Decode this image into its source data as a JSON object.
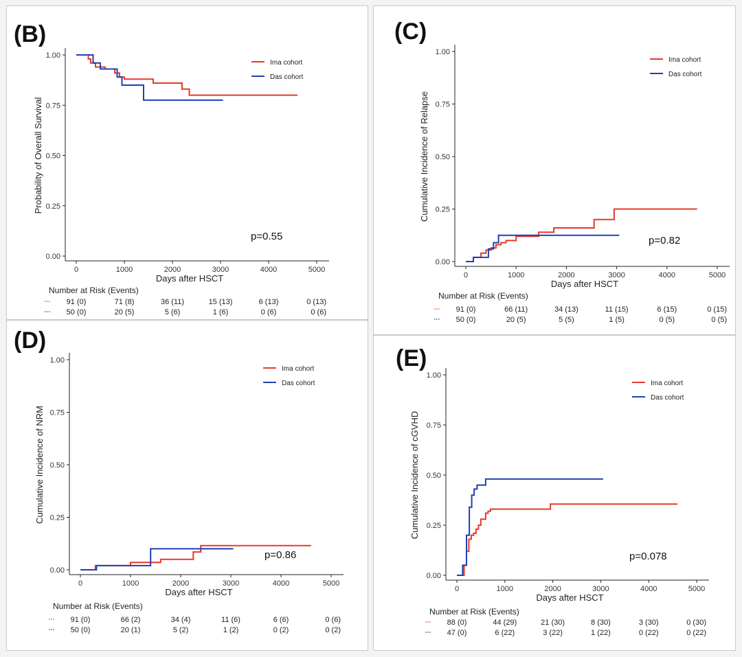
{
  "colors": {
    "ima": "#e5392a",
    "das": "#1f3fb4",
    "axis": "#222222"
  },
  "chart_data": [
    {
      "id": "B",
      "type": "line",
      "panel_label": "(B)",
      "xlabel": "Days after HSCT",
      "ylabel": "Probability of Overall Survival",
      "xlim": [
        0,
        5000
      ],
      "ylim": [
        0,
        1
      ],
      "xticks": [
        0,
        1000,
        2000,
        3000,
        4000,
        5000
      ],
      "yticks": [
        "0.00",
        "0.25",
        "0.50",
        "0.75",
        "1.00"
      ],
      "legend": "top-right",
      "p_value": "p=0.55",
      "series": [
        {
          "name": "Ima cohort",
          "color": "#e5392a",
          "x": [
            0,
            250,
            250,
            300,
            300,
            400,
            400,
            600,
            600,
            800,
            800,
            900,
            900,
            1000,
            1000,
            1600,
            1600,
            2200,
            2200,
            2350,
            2350,
            4600
          ],
          "y": [
            1.0,
            1.0,
            0.98,
            0.98,
            0.96,
            0.96,
            0.94,
            0.94,
            0.93,
            0.93,
            0.91,
            0.91,
            0.89,
            0.89,
            0.88,
            0.88,
            0.86,
            0.86,
            0.83,
            0.83,
            0.8,
            0.8
          ]
        },
        {
          "name": "Das cohort",
          "color": "#1f3fb4",
          "x": [
            0,
            350,
            350,
            500,
            500,
            850,
            850,
            950,
            950,
            1400,
            1400,
            3050
          ],
          "y": [
            1.0,
            1.0,
            0.96,
            0.96,
            0.93,
            0.93,
            0.89,
            0.89,
            0.85,
            0.85,
            0.775,
            0.775
          ]
        }
      ],
      "risk": {
        "title": "Number at Risk (Events)",
        "time_points": [
          0,
          1000,
          2000,
          3000,
          4000,
          5000
        ],
        "rows": [
          {
            "series": "Ima cohort",
            "values": [
              "91 (0)",
              "71 (8)",
              "36 (11)",
              "15 (13)",
              "6 (13)",
              "0 (13)"
            ]
          },
          {
            "series": "Das cohort",
            "values": [
              "50 (0)",
              "20 (5)",
              "5 (6)",
              "1 (6)",
              "0 (6)",
              "0 (6)"
            ]
          }
        ]
      }
    },
    {
      "id": "C",
      "type": "line",
      "panel_label": "(C)",
      "xlabel": "Days after HSCT",
      "ylabel": "Cumulative Incidence of Relapse",
      "xlim": [
        0,
        5000
      ],
      "ylim": [
        0,
        1
      ],
      "xticks": [
        0,
        1000,
        2000,
        3000,
        4000,
        5000
      ],
      "yticks": [
        "0.00",
        "0.25",
        "0.50",
        "0.75",
        "1.00"
      ],
      "legend": "top-right",
      "p_value": "p=0.82",
      "series": [
        {
          "name": "Ima cohort",
          "color": "#e5392a",
          "x": [
            0,
            150,
            150,
            300,
            300,
            400,
            400,
            500,
            500,
            600,
            600,
            700,
            700,
            800,
            800,
            1000,
            1000,
            1450,
            1450,
            1750,
            1750,
            2550,
            2550,
            2950,
            2950,
            4600
          ],
          "y": [
            0,
            0,
            0.02,
            0.02,
            0.04,
            0.04,
            0.055,
            0.055,
            0.065,
            0.065,
            0.08,
            0.08,
            0.09,
            0.09,
            0.1,
            0.1,
            0.12,
            0.12,
            0.14,
            0.14,
            0.16,
            0.16,
            0.2,
            0.2,
            0.25,
            0.25
          ]
        },
        {
          "name": "Das cohort",
          "color": "#1f3fb4",
          "x": [
            0,
            150,
            150,
            450,
            450,
            550,
            550,
            650,
            650,
            3050
          ],
          "y": [
            0,
            0,
            0.02,
            0.02,
            0.06,
            0.06,
            0.09,
            0.09,
            0.125,
            0.125
          ]
        }
      ],
      "risk": {
        "title": "Number at Risk (Events)",
        "time_points": [
          0,
          1000,
          2000,
          3000,
          4000,
          5000
        ],
        "rows": [
          {
            "series": "Ima cohort",
            "values": [
              "91 (0)",
              "66 (11)",
              "34 (13)",
              "11 (15)",
              "6 (15)",
              "0 (15)"
            ]
          },
          {
            "series": "Das cohort",
            "values": [
              "50 (0)",
              "20 (5)",
              "5 (5)",
              "1 (5)",
              "0 (5)",
              "0 (5)"
            ]
          }
        ]
      }
    },
    {
      "id": "D",
      "type": "line",
      "panel_label": "(D)",
      "xlabel": "Days after HSCT",
      "ylabel": "Cumulative Incidence of NRM",
      "xlim": [
        0,
        5000
      ],
      "ylim": [
        0,
        1
      ],
      "xticks": [
        0,
        1000,
        2000,
        3000,
        4000,
        5000
      ],
      "yticks": [
        "0.00",
        "0.25",
        "0.50",
        "0.75",
        "1.00"
      ],
      "legend": "top-right",
      "p_value": "p=0.86",
      "series": [
        {
          "name": "Ima cohort",
          "color": "#e5392a",
          "x": [
            0,
            300,
            300,
            1000,
            1000,
            1600,
            1600,
            2250,
            2250,
            2400,
            2400,
            4600
          ],
          "y": [
            0,
            0,
            0.02,
            0.02,
            0.035,
            0.035,
            0.05,
            0.05,
            0.085,
            0.085,
            0.115,
            0.115
          ]
        },
        {
          "name": "Das cohort",
          "color": "#1f3fb4",
          "x": [
            0,
            320,
            320,
            1400,
            1400,
            3050
          ],
          "y": [
            0,
            0,
            0.02,
            0.02,
            0.1,
            0.1
          ]
        }
      ],
      "risk": {
        "title": "Number at Risk (Events)",
        "time_points": [
          0,
          1000,
          2000,
          3000,
          4000,
          5000
        ],
        "rows": [
          {
            "series": "Ima cohort",
            "values": [
              "91 (0)",
              "66 (2)",
              "34 (4)",
              "11 (6)",
              "6 (6)",
              "0 (6)"
            ]
          },
          {
            "series": "Das cohort",
            "values": [
              "50 (0)",
              "20 (1)",
              "5 (2)",
              "1 (2)",
              "0 (2)",
              "0 (2)"
            ]
          }
        ]
      }
    },
    {
      "id": "E",
      "type": "line",
      "panel_label": "(E)",
      "xlabel": "Days after HSCT",
      "ylabel": "Cumulative Incidence of cGVHD",
      "xlim": [
        0,
        5000
      ],
      "ylim": [
        0,
        1
      ],
      "xticks": [
        0,
        1000,
        2000,
        3000,
        4000,
        5000
      ],
      "yticks": [
        "0.00",
        "0.25",
        "0.50",
        "0.75",
        "1.00"
      ],
      "legend": "top-right",
      "p_value": "p=0.078",
      "series": [
        {
          "name": "Ima cohort",
          "color": "#e5392a",
          "x": [
            0,
            150,
            150,
            200,
            200,
            250,
            250,
            300,
            300,
            350,
            350,
            400,
            400,
            450,
            450,
            500,
            500,
            600,
            600,
            650,
            650,
            700,
            700,
            1950,
            1950,
            4600
          ],
          "y": [
            0,
            0,
            0.05,
            0.05,
            0.12,
            0.12,
            0.18,
            0.18,
            0.2,
            0.2,
            0.21,
            0.21,
            0.23,
            0.23,
            0.25,
            0.25,
            0.28,
            0.28,
            0.31,
            0.31,
            0.32,
            0.32,
            0.33,
            0.33,
            0.355,
            0.355
          ]
        },
        {
          "name": "Das cohort",
          "color": "#1f3fb4",
          "x": [
            0,
            120,
            120,
            200,
            200,
            260,
            260,
            310,
            310,
            360,
            360,
            420,
            420,
            600,
            600,
            3050
          ],
          "y": [
            0,
            0,
            0.05,
            0.05,
            0.2,
            0.2,
            0.34,
            0.34,
            0.4,
            0.4,
            0.43,
            0.43,
            0.45,
            0.45,
            0.48,
            0.48
          ]
        }
      ],
      "risk": {
        "title": "Number at Risk (Events)",
        "time_points": [
          0,
          1000,
          2000,
          3000,
          4000,
          5000
        ],
        "rows": [
          {
            "series": "Ima cohort",
            "values": [
              "88 (0)",
              "44 (29)",
              "21 (30)",
              "8 (30)",
              "3 (30)",
              "0 (30)"
            ]
          },
          {
            "series": "Das cohort",
            "values": [
              "47 (0)",
              "6 (22)",
              "3 (22)",
              "1 (22)",
              "0 (22)",
              "0 (22)"
            ]
          }
        ]
      }
    }
  ]
}
